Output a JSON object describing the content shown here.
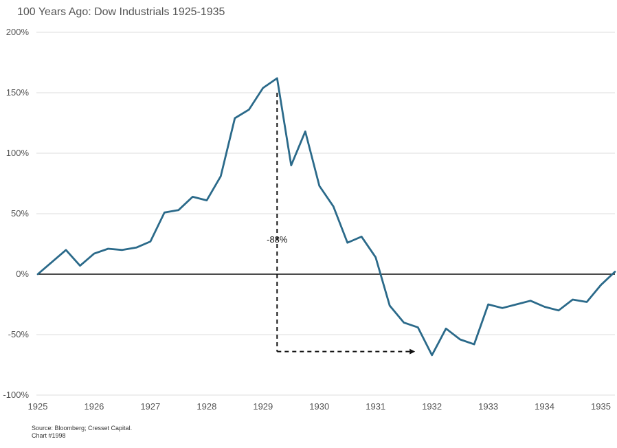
{
  "title": "100 Years Ago: Dow Industrials 1925-1935",
  "footer": {
    "source": "Source: Bloomberg; Cresset Capital.",
    "chart_number": "Chart #1998"
  },
  "colors": {
    "series": "#2b6a8a",
    "zero_line": "#111111",
    "grid": "#dddddd",
    "annotation": "#111111"
  },
  "chart_data": {
    "type": "line",
    "title": "100 Years Ago: Dow Industrials 1925-1935",
    "xlabel": "",
    "ylabel": "",
    "xlim": [
      1925,
      1935.25
    ],
    "ylim": [
      -100,
      200
    ],
    "x_ticks": [
      1925,
      1926,
      1927,
      1928,
      1929,
      1930,
      1931,
      1932,
      1933,
      1934,
      1935
    ],
    "x_tick_labels": [
      "1925",
      "1926",
      "1927",
      "1928",
      "1929",
      "1930",
      "1931",
      "1932",
      "1933",
      "1934",
      "1935"
    ],
    "y_ticks": [
      -100,
      -50,
      0,
      50,
      100,
      150,
      200
    ],
    "y_tick_labels": [
      "-100%",
      "-50%",
      "0%",
      "50%",
      "100%",
      "150%",
      "200%"
    ],
    "grid": true,
    "series": [
      {
        "x": [
          1925.0,
          1925.25,
          1925.5,
          1925.75,
          1926.0,
          1926.25,
          1926.5,
          1926.75,
          1927.0,
          1927.25,
          1927.5,
          1927.75,
          1928.0,
          1928.25,
          1928.5,
          1928.75,
          1929.0,
          1929.25,
          1929.5,
          1929.75,
          1930.0,
          1930.25,
          1930.5,
          1930.75,
          1931.0,
          1931.25,
          1931.5,
          1931.75,
          1932.0,
          1932.25,
          1932.5,
          1932.75,
          1933.0,
          1933.25,
          1933.5,
          1933.75,
          1934.0,
          1934.25,
          1934.5,
          1934.75,
          1935.0,
          1935.25
        ],
        "values": [
          0,
          10,
          20,
          7,
          17,
          21,
          20,
          22,
          27,
          51,
          53,
          64,
          61,
          81,
          129,
          136,
          154,
          162,
          90,
          118,
          73,
          56,
          26,
          31,
          14,
          -26,
          -40,
          -44,
          -67,
          -45,
          -54,
          -58,
          -25,
          -28,
          -25,
          -22,
          -27,
          -30,
          -21,
          -23,
          -9,
          2
        ]
      }
    ],
    "annotations": [
      {
        "text": "-88%",
        "arrow_vertical": {
          "x": 1929.25,
          "y_from": 150,
          "y_to": -64
        },
        "arrow_horizontal": {
          "y": -64,
          "x_from": 1929.25,
          "x_to": 1931.75
        }
      }
    ]
  }
}
